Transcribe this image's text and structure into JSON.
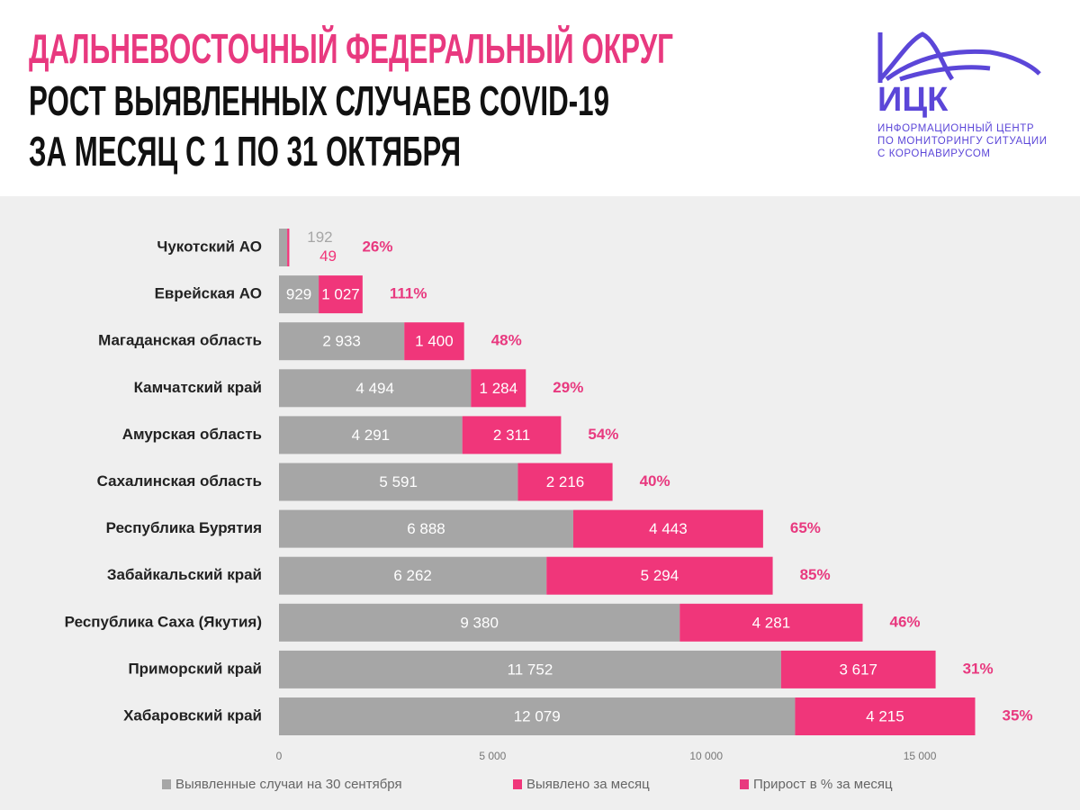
{
  "chart_data": {
    "type": "bar",
    "orientation": "horizontal",
    "stacked": true,
    "title": "ДАЛЬНЕВОСТОЧНЫЙ ФЕДЕРАЛЬНЫЙ ОКРУГ",
    "subtitle": [
      "РОСТ ВЫЯВЛЕННЫХ СЛУЧАЕВ COVID-19",
      "ЗА МЕСЯЦ С 1 ПО 31 ОКТЯБРЯ"
    ],
    "categories": [
      "Чукотский АО",
      "Еврейская АО",
      "Магаданская область",
      "Камчатский край",
      "Амурская область",
      "Сахалинская область",
      "Республика Бурятия",
      "Забайкальский край",
      "Республика Саха (Якутия)",
      "Приморский край",
      "Хабаровский край"
    ],
    "series": [
      {
        "name": "Выявленные случаи на 30 сентября",
        "color": "#a6a6a6",
        "values": [
          192,
          929,
          2933,
          4494,
          4291,
          5591,
          6888,
          6262,
          9380,
          11752,
          12079
        ],
        "value_labels": [
          "192",
          "929",
          "2 933",
          "4 494",
          "4 291",
          "5 591",
          "6 888",
          "6 262",
          "9 380",
          "11 752",
          "12 079"
        ]
      },
      {
        "name": "Выявлено за месяц",
        "color": "#f0367a",
        "values": [
          49,
          1027,
          1400,
          1284,
          2311,
          2216,
          4443,
          5294,
          4281,
          3617,
          4215
        ],
        "value_labels": [
          "49",
          "1 027",
          "1 400",
          "1 284",
          "2 311",
          "2 216",
          "4 443",
          "5 294",
          "4 281",
          "3 617",
          "4 215"
        ]
      },
      {
        "name": "Прирост в % за месяц",
        "color": "#e8397f",
        "values": [
          26,
          111,
          48,
          29,
          54,
          40,
          65,
          85,
          46,
          31,
          35
        ],
        "value_labels": [
          "26%",
          "111%",
          "48%",
          "29%",
          "54%",
          "40%",
          "65%",
          "85%",
          "46%",
          "31%",
          "35%"
        ]
      }
    ],
    "xlim": [
      0,
      17000
    ],
    "xticks": [
      0,
      {
        "value": 5000,
        "label": "5 000"
      },
      {
        "value": 10000,
        "label": "10 000"
      },
      {
        "value": 15000,
        "label": "15 000"
      }
    ],
    "grid": false,
    "legend": "bottom"
  },
  "logo": {
    "name": "ИЦК",
    "text": [
      "ИНФОРМАЦИОННЫЙ ЦЕНТР",
      "ПО МОНИТОРИНГУ СИТУАЦИИ",
      "С КОРОНАВИРУСОМ"
    ]
  }
}
